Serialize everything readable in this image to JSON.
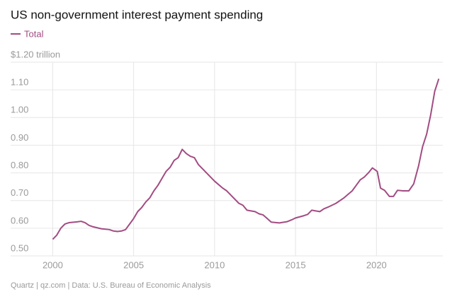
{
  "chart_data": {
    "type": "line",
    "title": "US non-government interest payment spending",
    "source": "Quartz | qz.com | Data: U.S. Bureau of Economic Analysis",
    "x": [
      2000.0,
      2000.25,
      2000.5,
      2000.75,
      2001.0,
      2001.5,
      2001.75,
      2002.0,
      2002.25,
      2002.5,
      2003.0,
      2003.5,
      2003.75,
      2004.0,
      2004.25,
      2004.5,
      2004.75,
      2005.0,
      2005.25,
      2005.5,
      2005.75,
      2006.0,
      2006.25,
      2006.5,
      2006.75,
      2007.0,
      2007.25,
      2007.5,
      2007.75,
      2008.0,
      2008.25,
      2008.5,
      2008.75,
      2009.0,
      2009.25,
      2009.5,
      2009.75,
      2010.0,
      2010.5,
      2010.75,
      2011.0,
      2011.5,
      2011.75,
      2012.0,
      2012.5,
      2012.75,
      2013.0,
      2013.25,
      2013.5,
      2014.0,
      2014.5,
      2014.75,
      2015.0,
      2015.5,
      2015.75,
      2016.0,
      2016.5,
      2016.75,
      2017.0,
      2017.5,
      2018.0,
      2018.5,
      2018.75,
      2019.0,
      2019.25,
      2019.5,
      2019.75,
      2020.05,
      2020.25,
      2020.5,
      2020.8,
      2021.05,
      2021.3,
      2021.65,
      2022.0,
      2022.3,
      2022.6,
      2022.85,
      2023.1,
      2023.35,
      2023.6,
      2023.85
    ],
    "series": [
      {
        "name": "Total",
        "color": "#a24c82",
        "values": [
          0.56,
          0.575,
          0.6,
          0.615,
          0.62,
          0.623,
          0.625,
          0.62,
          0.61,
          0.605,
          0.598,
          0.595,
          0.59,
          0.588,
          0.59,
          0.595,
          0.615,
          0.635,
          0.66,
          0.675,
          0.695,
          0.71,
          0.735,
          0.755,
          0.78,
          0.805,
          0.82,
          0.845,
          0.855,
          0.885,
          0.87,
          0.86,
          0.855,
          0.83,
          0.815,
          0.8,
          0.785,
          0.77,
          0.745,
          0.735,
          0.72,
          0.69,
          0.683,
          0.665,
          0.66,
          0.652,
          0.648,
          0.635,
          0.622,
          0.619,
          0.624,
          0.63,
          0.637,
          0.645,
          0.65,
          0.665,
          0.66,
          0.67,
          0.676,
          0.69,
          0.71,
          0.735,
          0.755,
          0.775,
          0.785,
          0.8,
          0.818,
          0.805,
          0.745,
          0.737,
          0.715,
          0.715,
          0.737,
          0.735,
          0.735,
          0.76,
          0.825,
          0.895,
          0.94,
          1.01,
          1.095,
          1.14
        ]
      }
    ],
    "xlim": [
      1997.4,
      2024.1
    ],
    "xticks": [
      2000,
      2005,
      2010,
      2015,
      2020
    ],
    "ylim": [
      0.5,
      1.2
    ],
    "yticks": [
      {
        "value": 0.5,
        "label": "0.50"
      },
      {
        "value": 0.6,
        "label": "0.60"
      },
      {
        "value": 0.7,
        "label": "0.70"
      },
      {
        "value": 0.8,
        "label": "0.80"
      },
      {
        "value": 0.9,
        "label": "0.90"
      },
      {
        "value": 1.0,
        "label": "1.00"
      },
      {
        "value": 1.1,
        "label": "1.10"
      },
      {
        "value": 1.2,
        "label": "$1.20 trillion"
      }
    ],
    "grid": true
  }
}
